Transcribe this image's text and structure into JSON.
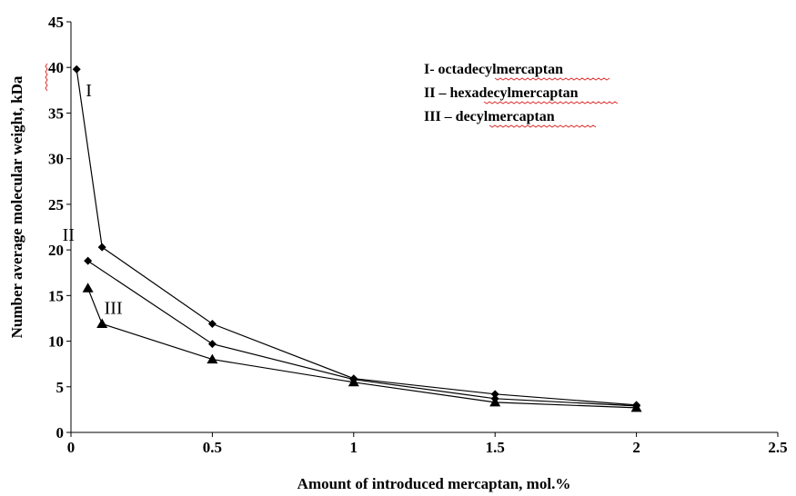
{
  "chart_data": {
    "type": "line",
    "title": "",
    "xlabel": "Amount of introduced mercaptan, mol.%",
    "ylabel": "Number average molecular weight, kDa",
    "xlim": [
      0,
      2.5
    ],
    "ylim": [
      0,
      45
    ],
    "xticks": [
      "0",
      "0.5",
      "1",
      "1.5",
      "2",
      "2.5"
    ],
    "yticks": [
      "0",
      "5",
      "10",
      "15",
      "20",
      "25",
      "30",
      "35",
      "40",
      "45"
    ],
    "grid": false,
    "legend_position": "top-right",
    "legend": [
      "I- octadecylmercaptan",
      "II – hexadecylmercaptan",
      "III – decylmercaptan"
    ],
    "series": [
      {
        "name": "I",
        "marker": "diamond",
        "points": [
          [
            0.02,
            39.8
          ],
          [
            0.11,
            20.3
          ],
          [
            0.5,
            11.9
          ],
          [
            1.0,
            5.9
          ],
          [
            1.5,
            4.2
          ],
          [
            2.0,
            3.0
          ]
        ]
      },
      {
        "name": "II",
        "marker": "diamond",
        "points": [
          [
            0.06,
            18.8
          ],
          [
            0.5,
            9.7
          ],
          [
            1.0,
            5.8
          ],
          [
            1.5,
            3.7
          ],
          [
            2.0,
            2.9
          ]
        ]
      },
      {
        "name": "III",
        "marker": "triangle",
        "points": [
          [
            0.06,
            15.8
          ],
          [
            0.11,
            11.9
          ],
          [
            0.5,
            8.0
          ],
          [
            1.0,
            5.5
          ],
          [
            1.5,
            3.3
          ],
          [
            2.0,
            2.7
          ]
        ]
      }
    ],
    "line_color": "#000000",
    "marker_color": "#000000",
    "squiggle_color": "#e03030"
  }
}
